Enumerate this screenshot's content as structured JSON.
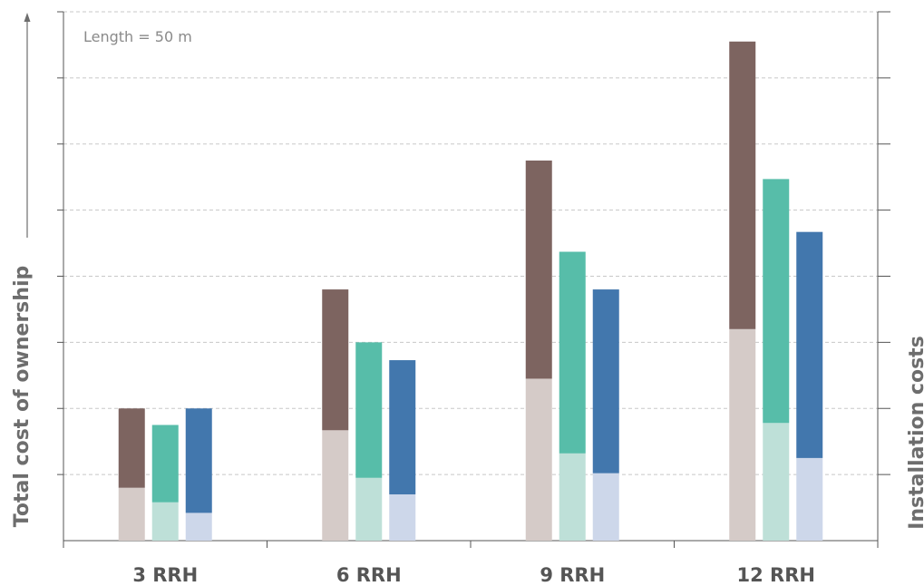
{
  "chart_data": {
    "type": "bar",
    "stacked": true,
    "title": "",
    "annotation": "Length = 50 m",
    "ylabel": "Total cost of ownership",
    "y2label": "Installation costs",
    "categories": [
      "3 RRH",
      "6 RRH",
      "9 RRH",
      "12 RRH"
    ],
    "ylim": [
      0,
      8
    ],
    "grid": true,
    "groups": [
      {
        "category": "3 RRH",
        "bars": [
          {
            "lower": 0.8,
            "total": 2.0
          },
          {
            "lower": 0.58,
            "total": 1.75
          },
          {
            "lower": 0.42,
            "total": 2.0
          }
        ]
      },
      {
        "category": "6 RRH",
        "bars": [
          {
            "lower": 1.67,
            "total": 3.8
          },
          {
            "lower": 0.95,
            "total": 3.0
          },
          {
            "lower": 0.7,
            "total": 2.73
          }
        ]
      },
      {
        "category": "9 RRH",
        "bars": [
          {
            "lower": 2.45,
            "total": 5.75
          },
          {
            "lower": 1.32,
            "total": 4.37
          },
          {
            "lower": 1.02,
            "total": 3.8
          }
        ]
      },
      {
        "category": "12 RRH",
        "bars": [
          {
            "lower": 3.2,
            "total": 7.55
          },
          {
            "lower": 1.78,
            "total": 5.47
          },
          {
            "lower": 1.25,
            "total": 4.67
          }
        ]
      }
    ],
    "colors": {
      "upper": [
        "#7d6460",
        "#57bda9",
        "#4277ad"
      ],
      "lower": [
        "#d5cbc8",
        "#bee0d8",
        "#cdd7ea"
      ]
    }
  }
}
